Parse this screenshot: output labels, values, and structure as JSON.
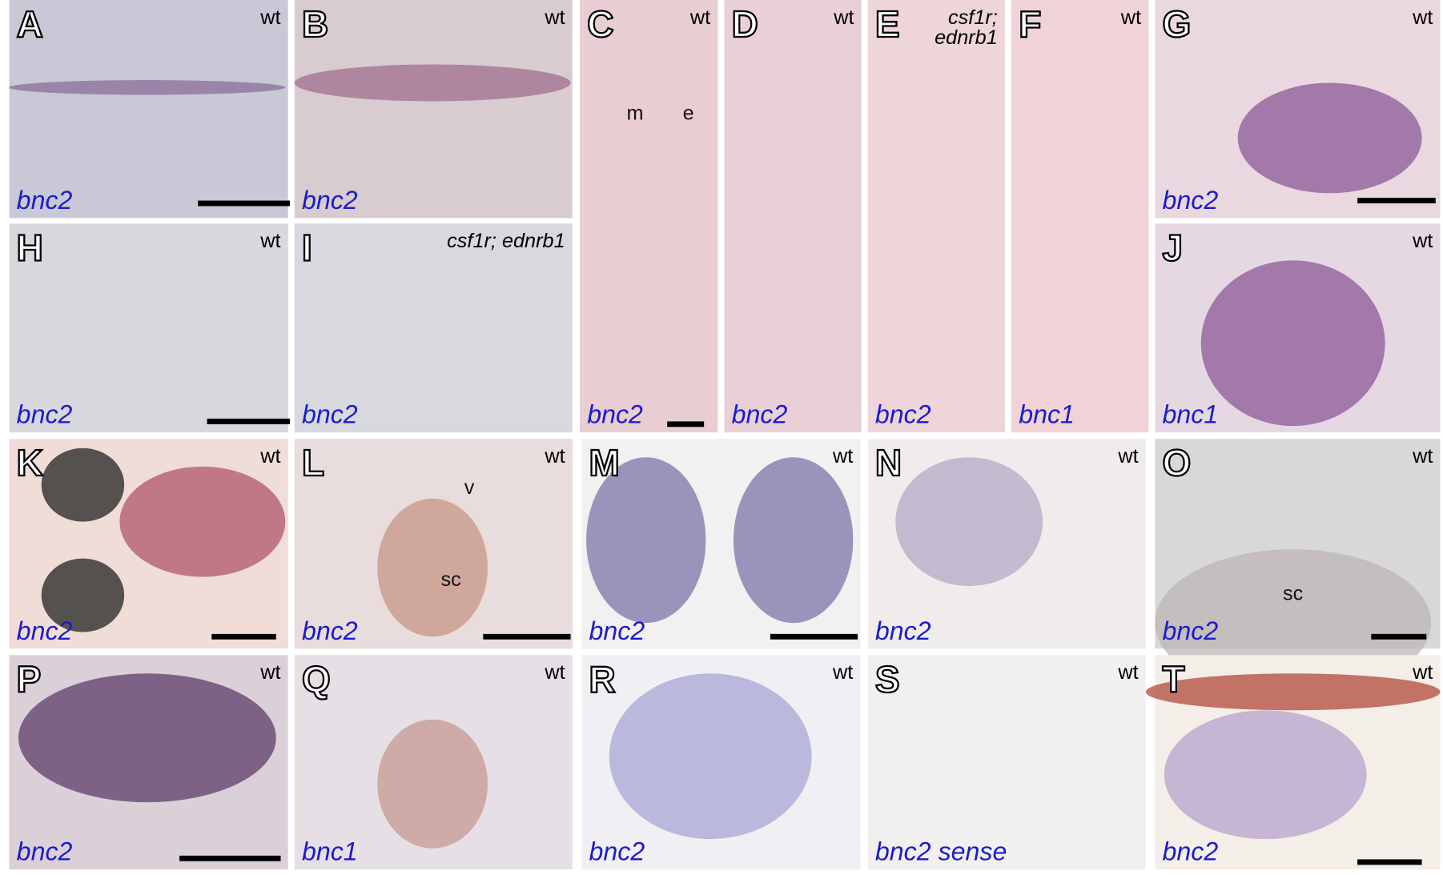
{
  "panels": [
    {
      "letter": "A",
      "genotype": [
        "wt"
      ],
      "gene": "bnc2"
    },
    {
      "letter": "B",
      "genotype": [
        "wt"
      ],
      "gene": "bnc2"
    },
    {
      "letter": "C",
      "genotype": [
        "wt"
      ],
      "gene": "bnc2",
      "annotations": [
        "m",
        "e"
      ]
    },
    {
      "letter": "D",
      "genotype": [
        "wt"
      ],
      "gene": "bnc2"
    },
    {
      "letter": "E",
      "genotype": [
        "csf1r;",
        "ednrb1"
      ],
      "gene": "bnc2"
    },
    {
      "letter": "F",
      "genotype": [
        "wt"
      ],
      "gene": "bnc1"
    },
    {
      "letter": "G",
      "genotype": [
        "wt"
      ],
      "gene": "bnc2"
    },
    {
      "letter": "H",
      "genotype": [
        "wt"
      ],
      "gene": "bnc2"
    },
    {
      "letter": "I",
      "genotype": [
        "csf1r; ednrb1"
      ],
      "gene": "bnc2"
    },
    {
      "letter": "J",
      "genotype": [
        "wt"
      ],
      "gene": "bnc1"
    },
    {
      "letter": "K",
      "genotype": [
        "wt"
      ],
      "gene": "bnc2"
    },
    {
      "letter": "L",
      "genotype": [
        "wt"
      ],
      "gene": "bnc2",
      "annotations": [
        "v",
        "sc"
      ]
    },
    {
      "letter": "M",
      "genotype": [
        "wt"
      ],
      "gene": "bnc2"
    },
    {
      "letter": "N",
      "genotype": [
        "wt"
      ],
      "gene": "bnc2"
    },
    {
      "letter": "O",
      "genotype": [
        "wt"
      ],
      "gene": "bnc2",
      "annotations": [
        "sc"
      ]
    },
    {
      "letter": "P",
      "genotype": [
        "wt"
      ],
      "gene": "bnc2"
    },
    {
      "letter": "Q",
      "genotype": [
        "wt"
      ],
      "gene": "bnc1"
    },
    {
      "letter": "R",
      "genotype": [
        "wt"
      ],
      "gene": "bnc2"
    },
    {
      "letter": "S",
      "genotype": [
        "wt"
      ],
      "gene": "bnc2 sense"
    },
    {
      "letter": "T",
      "genotype": [
        "wt"
      ],
      "gene": "bnc2"
    }
  ]
}
